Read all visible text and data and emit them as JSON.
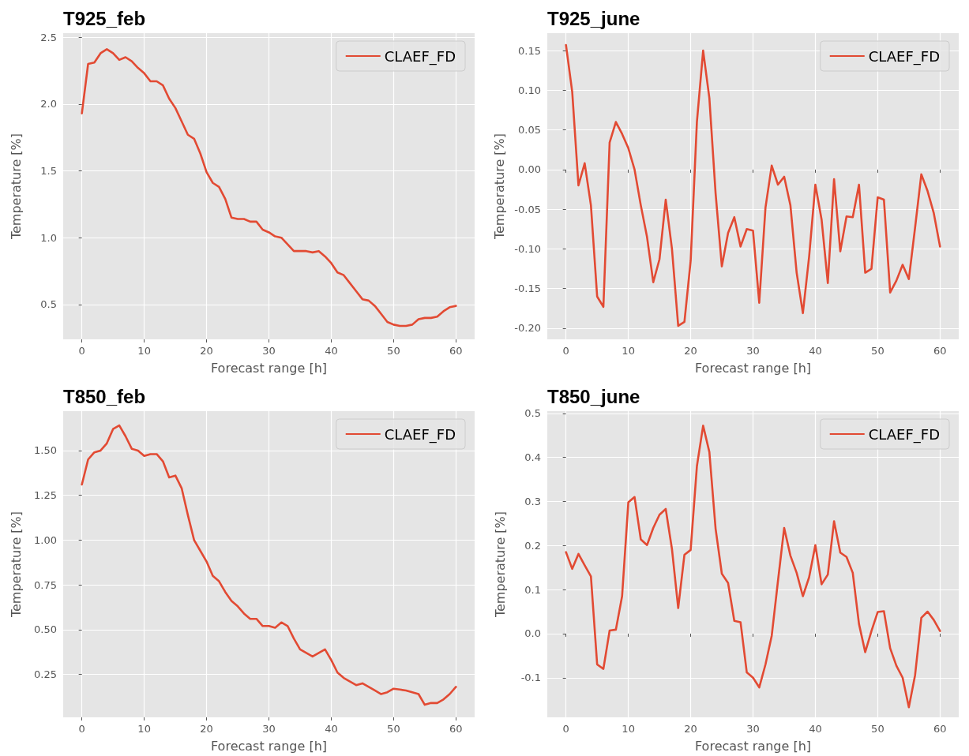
{
  "chart_data": [
    {
      "type": "line",
      "title": "T925_feb",
      "xlabel": "Forecast range [h]",
      "ylabel": "Temperature [%]",
      "legend": "top right",
      "grid": true,
      "marker": "none",
      "line_style": "solid",
      "xlim": [
        -3,
        63
      ],
      "xticks": [
        0,
        10,
        20,
        30,
        40,
        50,
        60
      ],
      "ylim": [
        0.24,
        2.53
      ],
      "yticks": [
        0.5,
        {
          "value": 1,
          "label": "1.0"
        },
        1.5,
        {
          "value": 2,
          "label": "2.0"
        },
        2.5
      ],
      "x": [
        0,
        1,
        2,
        3,
        4,
        5,
        6,
        7,
        8,
        9,
        10,
        11,
        12,
        13,
        14,
        15,
        16,
        17,
        18,
        19,
        20,
        21,
        22,
        23,
        24,
        25,
        26,
        27,
        28,
        29,
        30,
        31,
        32,
        33,
        34,
        35,
        36,
        37,
        38,
        39,
        40,
        41,
        42,
        43,
        44,
        45,
        46,
        47,
        48,
        49,
        50,
        51,
        52,
        53,
        54,
        55,
        56,
        57,
        58,
        59,
        60
      ],
      "series": [
        {
          "name": "CLAEF_FD",
          "color": "#e24a33",
          "values": [
            1.93,
            2.3,
            2.31,
            2.38,
            2.41,
            2.38,
            2.33,
            2.35,
            2.32,
            2.27,
            2.23,
            2.17,
            2.17,
            2.14,
            2.04,
            1.97,
            1.87,
            1.77,
            1.74,
            1.63,
            1.49,
            1.41,
            1.38,
            1.29,
            1.15,
            1.14,
            1.14,
            1.12,
            1.12,
            1.06,
            1.04,
            1.01,
            1.0,
            0.95,
            0.9,
            0.9,
            0.9,
            0.89,
            0.9,
            0.86,
            0.81,
            0.74,
            0.72,
            0.66,
            0.6,
            0.54,
            0.53,
            0.49,
            0.43,
            0.37,
            0.35,
            0.34,
            0.34,
            0.35,
            0.39,
            0.4,
            0.4,
            0.41,
            0.45,
            0.48,
            0.49
          ]
        }
      ]
    },
    {
      "type": "line",
      "title": "T925_june",
      "xlabel": "Forecast range [h]",
      "ylabel": "Temperature [%]",
      "legend": "top right",
      "grid": true,
      "marker": "none",
      "line_style": "solid",
      "xlim": [
        -3,
        63
      ],
      "xticks": [
        0,
        10,
        20,
        30,
        40,
        50,
        60
      ],
      "ylim": [
        -0.214,
        0.172
      ],
      "yticks": [
        {
          "value": -0.2,
          "label": "-0.20"
        },
        -0.15,
        {
          "value": -0.1,
          "label": "-0.10"
        },
        -0.05,
        {
          "value": 0,
          "label": "0.00"
        },
        0.05,
        {
          "value": 0.1,
          "label": "0.10"
        },
        0.15
      ],
      "x": [
        0,
        1,
        2,
        3,
        4,
        5,
        6,
        7,
        8,
        9,
        10,
        11,
        12,
        13,
        14,
        15,
        16,
        17,
        18,
        19,
        20,
        21,
        22,
        23,
        24,
        25,
        26,
        27,
        28,
        29,
        30,
        31,
        32,
        33,
        34,
        35,
        36,
        37,
        38,
        39,
        40,
        41,
        42,
        43,
        44,
        45,
        46,
        47,
        48,
        49,
        50,
        51,
        52,
        53,
        54,
        55,
        56,
        57,
        58,
        59,
        60
      ],
      "series": [
        {
          "name": "CLAEF_FD",
          "color": "#e24a33",
          "values": [
            0.157,
            0.098,
            -0.02,
            0.008,
            -0.045,
            -0.16,
            -0.173,
            0.034,
            0.06,
            0.045,
            0.027,
            0.0,
            -0.045,
            -0.085,
            -0.142,
            -0.113,
            -0.038,
            -0.1,
            -0.197,
            -0.192,
            -0.115,
            0.06,
            0.15,
            0.09,
            -0.03,
            -0.122,
            -0.08,
            -0.06,
            -0.097,
            -0.075,
            -0.077,
            -0.168,
            -0.048,
            0.005,
            -0.019,
            -0.009,
            -0.045,
            -0.13,
            -0.181,
            -0.11,
            -0.019,
            -0.063,
            -0.143,
            -0.012,
            -0.103,
            -0.059,
            -0.06,
            -0.019,
            -0.13,
            -0.125,
            -0.035,
            -0.038,
            -0.155,
            -0.14,
            -0.12,
            -0.138,
            -0.073,
            -0.006,
            -0.027,
            -0.055,
            -0.097
          ]
        }
      ]
    },
    {
      "type": "line",
      "title": "T850_feb",
      "xlabel": "Forecast range [h]",
      "ylabel": "Temperature [%]",
      "legend": "top right",
      "grid": true,
      "marker": "none",
      "line_style": "solid",
      "xlim": [
        -3,
        63
      ],
      "xticks": [
        0,
        10,
        20,
        30,
        40,
        50,
        60
      ],
      "ylim": [
        0.01,
        1.72
      ],
      "yticks": [
        0.25,
        {
          "value": 0.5,
          "label": "0.50"
        },
        0.75,
        {
          "value": 1,
          "label": "1.00"
        },
        1.25,
        {
          "value": 1.5,
          "label": "1.50"
        }
      ],
      "x": [
        0,
        1,
        2,
        3,
        4,
        5,
        6,
        7,
        8,
        9,
        10,
        11,
        12,
        13,
        14,
        15,
        16,
        17,
        18,
        19,
        20,
        21,
        22,
        23,
        24,
        25,
        26,
        27,
        28,
        29,
        30,
        31,
        32,
        33,
        34,
        35,
        36,
        37,
        38,
        39,
        40,
        41,
        42,
        43,
        44,
        45,
        46,
        47,
        48,
        49,
        50,
        51,
        52,
        53,
        54,
        55,
        56,
        57,
        58,
        59,
        60
      ],
      "series": [
        {
          "name": "CLAEF_FD",
          "color": "#e24a33",
          "values": [
            1.31,
            1.45,
            1.49,
            1.5,
            1.54,
            1.62,
            1.64,
            1.58,
            1.51,
            1.5,
            1.47,
            1.48,
            1.48,
            1.44,
            1.35,
            1.36,
            1.29,
            1.14,
            1.0,
            0.94,
            0.88,
            0.8,
            0.77,
            0.71,
            0.66,
            0.63,
            0.59,
            0.56,
            0.56,
            0.52,
            0.52,
            0.51,
            0.54,
            0.52,
            0.45,
            0.39,
            0.37,
            0.35,
            0.37,
            0.39,
            0.33,
            0.26,
            0.23,
            0.21,
            0.19,
            0.2,
            0.18,
            0.16,
            0.14,
            0.15,
            0.17,
            0.165,
            0.16,
            0.15,
            0.14,
            0.08,
            0.09,
            0.09,
            0.11,
            0.14,
            0.18
          ]
        }
      ]
    },
    {
      "type": "line",
      "title": "T850_june",
      "xlabel": "Forecast range [h]",
      "ylabel": "Temperature [%]",
      "legend": "top right",
      "grid": true,
      "marker": "none",
      "line_style": "solid",
      "xlim": [
        -3,
        63
      ],
      "xticks": [
        0,
        10,
        20,
        30,
        40,
        50,
        60
      ],
      "ylim": [
        -0.19,
        0.505
      ],
      "yticks": [
        -0.1,
        {
          "value": 0,
          "label": "0.0"
        },
        0.1,
        0.2,
        0.3,
        0.4,
        0.5
      ],
      "x": [
        0,
        1,
        2,
        3,
        4,
        5,
        6,
        7,
        8,
        9,
        10,
        11,
        12,
        13,
        14,
        15,
        16,
        17,
        18,
        19,
        20,
        21,
        22,
        23,
        24,
        25,
        26,
        27,
        28,
        29,
        30,
        31,
        32,
        33,
        34,
        35,
        36,
        37,
        38,
        39,
        40,
        41,
        42,
        43,
        44,
        45,
        46,
        47,
        48,
        49,
        50,
        51,
        52,
        53,
        54,
        55,
        56,
        57,
        58,
        59,
        60
      ],
      "series": [
        {
          "name": "CLAEF_FD",
          "color": "#e24a33",
          "values": [
            0.185,
            0.147,
            0.181,
            0.155,
            0.13,
            -0.07,
            -0.08,
            0.007,
            0.009,
            0.085,
            0.298,
            0.31,
            0.214,
            0.201,
            0.24,
            0.27,
            0.283,
            0.192,
            0.058,
            0.179,
            0.19,
            0.38,
            0.472,
            0.412,
            0.238,
            0.136,
            0.115,
            0.029,
            0.026,
            -0.088,
            -0.1,
            -0.122,
            -0.07,
            -0.005,
            0.119,
            0.24,
            0.177,
            0.138,
            0.085,
            0.128,
            0.201,
            0.112,
            0.134,
            0.255,
            0.184,
            0.174,
            0.138,
            0.022,
            -0.042,
            0.006,
            0.049,
            0.051,
            -0.033,
            -0.073,
            -0.1,
            -0.167,
            -0.094,
            0.036,
            0.05,
            0.031,
            0.006
          ]
        }
      ]
    }
  ]
}
